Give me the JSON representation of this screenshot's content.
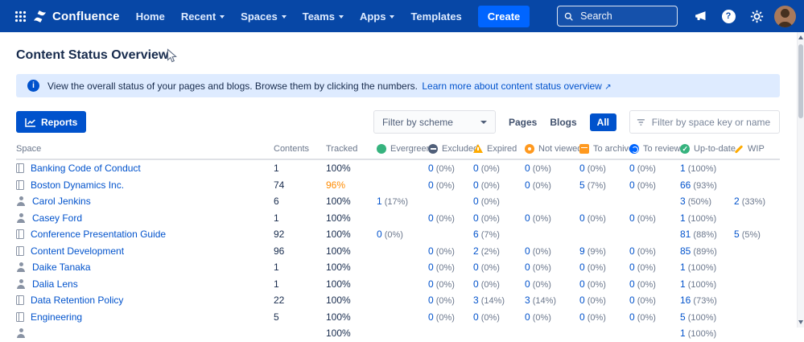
{
  "nav": {
    "product": "Confluence",
    "items": [
      "Home",
      "Recent",
      "Spaces",
      "Teams",
      "Apps",
      "Templates"
    ],
    "create_label": "Create",
    "search_placeholder": "Search"
  },
  "page": {
    "title": "Content Status Overview"
  },
  "banner": {
    "text": "View the overall status of your pages and blogs. Browse them by clicking the numbers.",
    "link": "Learn more about content status overview"
  },
  "toolbar": {
    "reports_label": "Reports",
    "scheme_filter": "Filter by scheme",
    "content_filters": [
      "Pages",
      "Blogs",
      "All"
    ],
    "active_filter": "All",
    "space_filter_placeholder": "Filter by space key or name"
  },
  "table": {
    "columns": [
      {
        "label": "Space",
        "icon": null
      },
      {
        "label": "Contents",
        "icon": null
      },
      {
        "label": "Tracked",
        "icon": null
      },
      {
        "label": "Evergreen",
        "icon": "evergreen-icon"
      },
      {
        "label": "Excluded",
        "icon": "excluded-icon"
      },
      {
        "label": "Expired",
        "icon": "expired-icon"
      },
      {
        "label": "Not viewed",
        "icon": "not-viewed-icon"
      },
      {
        "label": "To archive",
        "icon": "to-archive-icon"
      },
      {
        "label": "To review",
        "icon": "to-review-icon"
      },
      {
        "label": "Up-to-date",
        "icon": "up-to-date-icon"
      },
      {
        "label": "WIP",
        "icon": "wip-icon"
      }
    ],
    "rows": [
      {
        "name": "Banking Code of Conduct",
        "type": "space",
        "cells": [
          "1",
          "100%",
          "",
          "0 (0%)",
          "0 (0%)",
          "0 (0%)",
          "0 (0%)",
          "0 (0%)",
          "1 (100%)",
          ""
        ]
      },
      {
        "name": "Boston Dynamics Inc.",
        "type": "space",
        "cells": [
          "74",
          "96%",
          "",
          "0 (0%)",
          "0 (0%)",
          "0 (0%)",
          "5 (7%)",
          "0 (0%)",
          "66 (93%)",
          ""
        ]
      },
      {
        "name": "Carol Jenkins",
        "type": "person",
        "cells": [
          "6",
          "100%",
          "1 (17%)",
          "",
          "0 (0%)",
          "",
          "",
          "",
          "3 (50%)",
          "2 (33%)"
        ]
      },
      {
        "name": "Casey Ford",
        "type": "person",
        "cells": [
          "1",
          "100%",
          "",
          "0 (0%)",
          "0 (0%)",
          "0 (0%)",
          "0 (0%)",
          "0 (0%)",
          "1 (100%)",
          ""
        ]
      },
      {
        "name": "Conference Presentation Guide",
        "type": "space",
        "cells": [
          "92",
          "100%",
          "0 (0%)",
          "",
          "6 (7%)",
          "",
          "",
          "",
          "81 (88%)",
          "5 (5%)"
        ]
      },
      {
        "name": "Content Development",
        "type": "space",
        "cells": [
          "96",
          "100%",
          "",
          "0 (0%)",
          "2 (2%)",
          "0 (0%)",
          "9 (9%)",
          "0 (0%)",
          "85 (89%)",
          ""
        ]
      },
      {
        "name": "Daike Tanaka",
        "type": "person",
        "cells": [
          "1",
          "100%",
          "",
          "0 (0%)",
          "0 (0%)",
          "0 (0%)",
          "0 (0%)",
          "0 (0%)",
          "1 (100%)",
          ""
        ]
      },
      {
        "name": "Dalia Lens",
        "type": "person",
        "cells": [
          "1",
          "100%",
          "",
          "0 (0%)",
          "0 (0%)",
          "0 (0%)",
          "0 (0%)",
          "0 (0%)",
          "1 (100%)",
          ""
        ]
      },
      {
        "name": "Data Retention Policy",
        "type": "space",
        "cells": [
          "22",
          "100%",
          "",
          "0 (0%)",
          "3 (14%)",
          "3 (14%)",
          "0 (0%)",
          "0 (0%)",
          "16 (73%)",
          ""
        ]
      },
      {
        "name": "Engineering",
        "type": "space",
        "cells": [
          "5",
          "100%",
          "",
          "0 (0%)",
          "0 (0%)",
          "0 (0%)",
          "0 (0%)",
          "0 (0%)",
          "5 (100%)",
          ""
        ]
      },
      {
        "name": "",
        "type": "person",
        "cells": [
          "",
          "100%",
          "",
          "",
          "",
          "",
          "",
          "",
          "1 (100%)",
          ""
        ]
      }
    ]
  },
  "colors": {
    "nav_bg": "#0747A6",
    "link": "#0052CC",
    "create_btn": "#0065FF",
    "reports_btn": "#0052CC",
    "banner_bg": "#DEEBFF",
    "warn": "#FF8B00",
    "text_dark": "#172B4D",
    "text_muted": "#6B778C",
    "evergreen": "#36B37E",
    "excluded": "#505F79",
    "expired": "#FFAB00",
    "not_viewed": "#FF991F",
    "to_archive": "#FF991F",
    "to_review": "#0065FF",
    "up_to_date": "#36B37E",
    "wip": "#FFAB00"
  }
}
